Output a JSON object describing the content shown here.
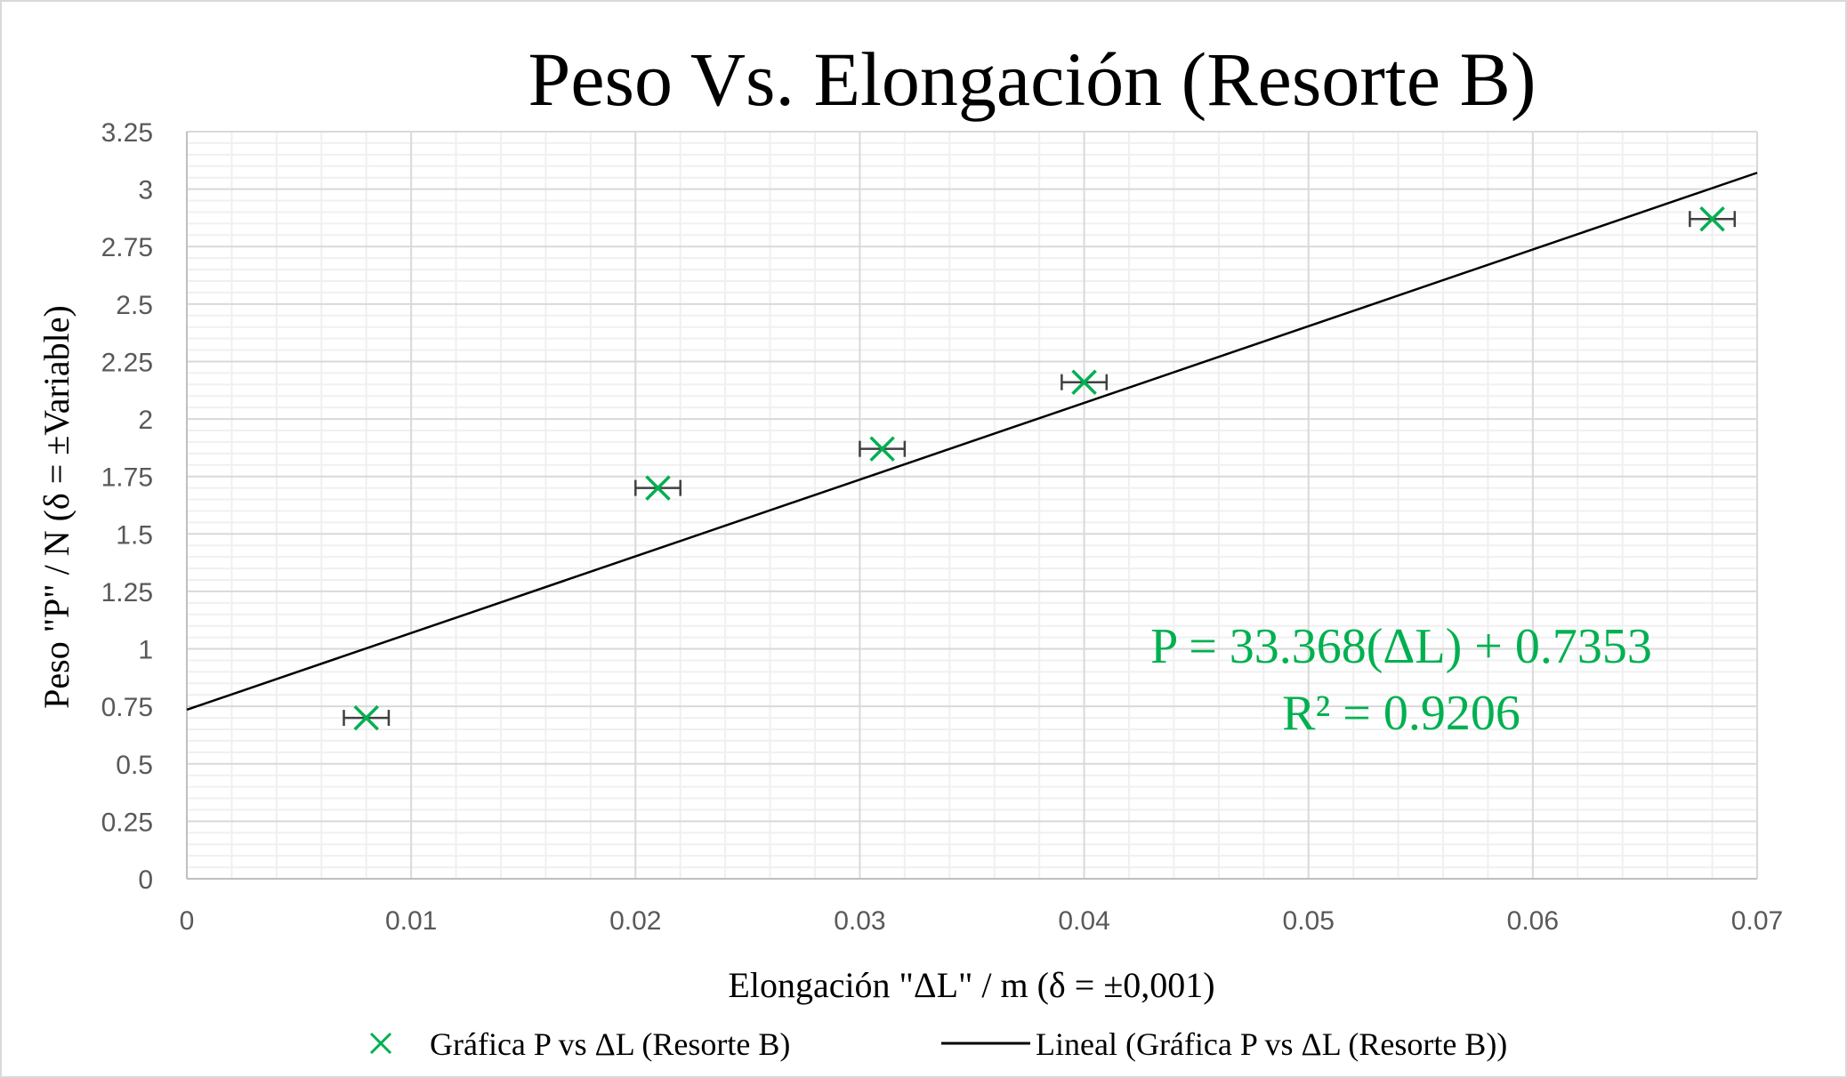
{
  "chart_data": {
    "type": "scatter",
    "title": "Peso Vs. Elongación (Resorte B)",
    "xlabel": "Elongación \"ΔL\" / m (δ = ±0,001)",
    "ylabel": "Peso \"P\" / N (δ = ±Variable)",
    "xlim": [
      0,
      0.07
    ],
    "ylim": [
      0,
      3.25
    ],
    "x_major_step": 0.01,
    "x_minor_step": 0.002,
    "y_major_step": 0.25,
    "y_minor_step": 0.05,
    "x_tick_labels": [
      "0",
      "0.01",
      "0.02",
      "0.03",
      "0.04",
      "0.05",
      "0.06",
      "0.07"
    ],
    "y_tick_labels": [
      "0",
      "0.25",
      "0.5",
      "0.75",
      "1",
      "1.25",
      "1.5",
      "1.75",
      "2",
      "2.25",
      "2.5",
      "2.75",
      "3",
      "3.25"
    ],
    "grid": true,
    "legend_position": "bottom",
    "series": [
      {
        "name": "Gráfica P vs ΔL (Resorte B)",
        "marker": "x",
        "color": "#00B050",
        "x": [
          0.008,
          0.021,
          0.031,
          0.04,
          0.068
        ],
        "y": [
          0.7,
          1.7,
          1.87,
          2.16,
          2.87
        ],
        "x_error": 0.001
      },
      {
        "name": "Lineal (Gráfica P vs ΔL (Resorte B))",
        "type": "trendline",
        "color": "#000000",
        "slope": 33.368,
        "intercept": 0.7353
      }
    ],
    "annotations": [
      {
        "text": "P = 33.368(ΔL) + 0.7353",
        "color": "#00B050"
      },
      {
        "text": "R² = 0.9206",
        "color": "#00B050"
      }
    ]
  }
}
